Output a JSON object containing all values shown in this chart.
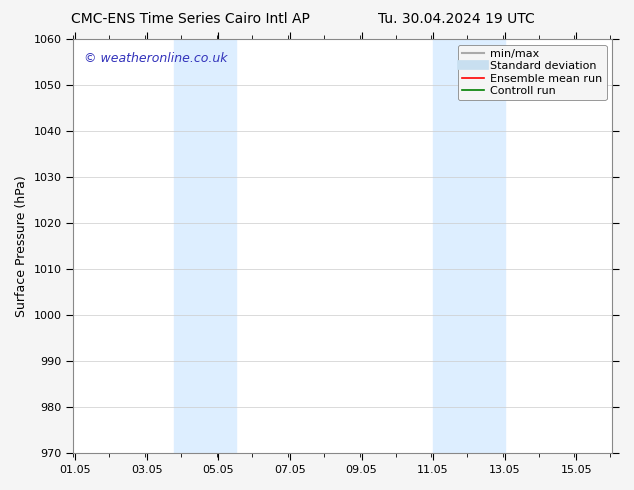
{
  "title_left": "CMC-ENS Time Series Cairo Intl AP",
  "title_right": "Tu. 30.04.2024 19 UTC",
  "ylabel": "Surface Pressure (hPa)",
  "ylim": [
    970,
    1060
  ],
  "yticks": [
    970,
    980,
    990,
    1000,
    1010,
    1020,
    1030,
    1040,
    1050,
    1060
  ],
  "xlim_start": 1.0,
  "xlim_end": 16.05,
  "xticks": [
    1.05,
    3.05,
    5.05,
    7.05,
    9.05,
    11.05,
    13.05,
    15.05
  ],
  "xticklabels": [
    "01.05",
    "03.05",
    "05.05",
    "07.05",
    "09.05",
    "11.05",
    "13.05",
    "15.05"
  ],
  "shaded_regions": [
    {
      "x_start": 3.8,
      "x_end": 4.55
    },
    {
      "x_start": 4.55,
      "x_end": 5.55
    },
    {
      "x_start": 11.05,
      "x_end": 12.05
    },
    {
      "x_start": 12.05,
      "x_end": 13.05
    }
  ],
  "shade_color": "#ddeeff",
  "shade_color2": "#e8f4fb",
  "watermark_text": "© weatheronline.co.uk",
  "watermark_color": "#3333bb",
  "watermark_fontsize": 9,
  "legend_entries": [
    {
      "label": "min/max",
      "color": "#aaaaaa",
      "linestyle": "-",
      "linewidth": 1.5
    },
    {
      "label": "Standard deviation",
      "color": "#c8dff0",
      "linestyle": "-",
      "linewidth": 7
    },
    {
      "label": "Ensemble mean run",
      "color": "red",
      "linestyle": "-",
      "linewidth": 1.2
    },
    {
      "label": "Controll run",
      "color": "green",
      "linestyle": "-",
      "linewidth": 1.2
    }
  ],
  "bg_color": "#f5f5f5",
  "plot_bg_color": "#ffffff",
  "grid_color": "#cccccc",
  "spine_color": "#888888",
  "title_fontsize": 10,
  "tick_fontsize": 8,
  "ylabel_fontsize": 9,
  "legend_fontsize": 8
}
